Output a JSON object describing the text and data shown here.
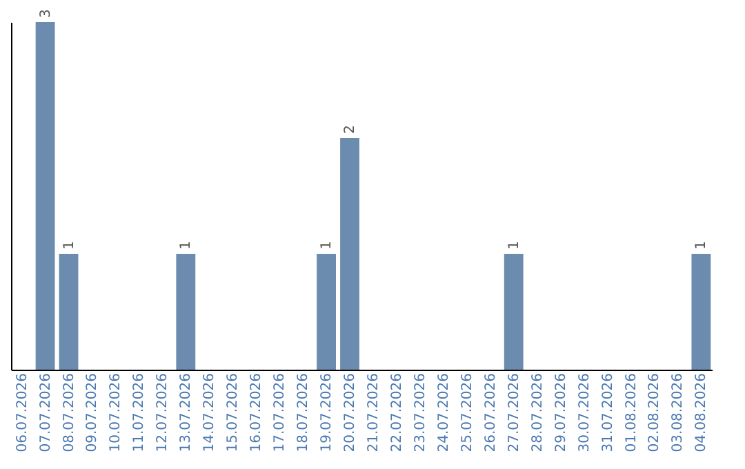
{
  "chart_data": {
    "type": "bar",
    "categories": [
      "06.07.2026",
      "07.07.2026",
      "08.07.2026",
      "09.07.2026",
      "10.07.2026",
      "11.07.2026",
      "12.07.2026",
      "13.07.2026",
      "14.07.2026",
      "15.07.2026",
      "16.07.2026",
      "17.07.2026",
      "18.07.2026",
      "19.07.2026",
      "20.07.2026",
      "21.07.2026",
      "22.07.2026",
      "23.07.2026",
      "24.07.2026",
      "25.07.2026",
      "26.07.2026",
      "27.07.2026",
      "28.07.2026",
      "29.07.2026",
      "30.07.2026",
      "31.07.2026",
      "01.08.2026",
      "02.08.2026",
      "03.08.2026",
      "04.08.2026"
    ],
    "values": [
      0,
      3,
      1,
      0,
      0,
      0,
      0,
      1,
      0,
      0,
      0,
      0,
      0,
      1,
      2,
      0,
      0,
      0,
      0,
      0,
      0,
      1,
      0,
      0,
      0,
      0,
      0,
      0,
      0,
      1
    ],
    "value_labels": [
      null,
      "3",
      "1",
      null,
      null,
      null,
      null,
      "1",
      null,
      null,
      null,
      null,
      null,
      "1",
      "2",
      null,
      null,
      null,
      null,
      null,
      null,
      "1",
      null,
      null,
      null,
      null,
      null,
      null,
      null,
      "1"
    ],
    "color": "#6b8cae",
    "tick_labels": "x",
    "grid": false
  }
}
